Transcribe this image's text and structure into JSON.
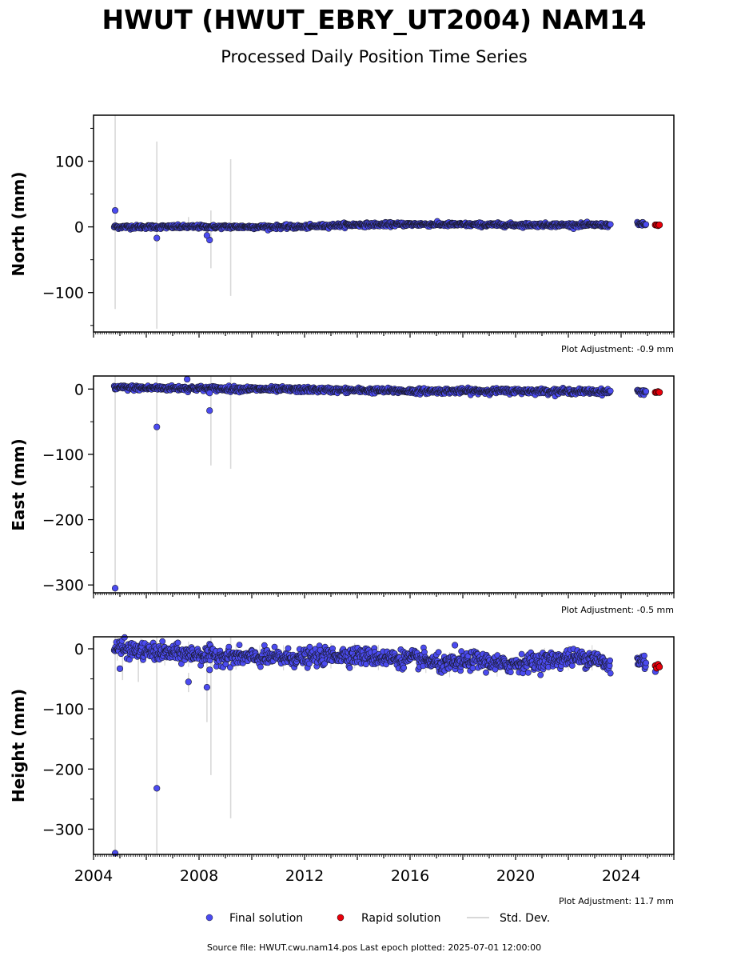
{
  "title": "HWUT (HWUT_EBRY_UT2004) NAM14",
  "subtitle": "Processed Daily Position Time Series",
  "source": "Source file: HWUT.cwu.nam14.pos  Last epoch plotted: 2025-07-01 12:00:00",
  "legend": {
    "final": "Final solution",
    "rapid": "Rapid solution",
    "std": "Std. Dev."
  },
  "colors": {
    "final": "#4b4bf0",
    "rapid": "#e8000b",
    "edge": "#1a1a2e",
    "std": "#d8d8d8"
  },
  "chart_data": [
    {
      "type": "scatter",
      "ylabel": "North (mm)",
      "adjustment": "Plot Adjustment: -0.9 mm",
      "xlim": [
        2004,
        2026
      ],
      "ylim": [
        -160,
        170
      ],
      "yticks": [
        -100,
        0,
        100
      ],
      "yticklabels": [
        "−100",
        "0",
        "100"
      ],
      "trend": [
        [
          2004.8,
          0
        ],
        [
          2008,
          0
        ],
        [
          2012,
          0
        ],
        [
          2013.5,
          3
        ],
        [
          2016,
          4
        ],
        [
          2020,
          3
        ],
        [
          2023.5,
          3
        ],
        [
          2024.8,
          4
        ],
        [
          2025.4,
          3
        ]
      ],
      "noise": 1.5,
      "gaps": [
        [
          2023.6,
          2024.6
        ],
        [
          2024.95,
          2025.3
        ]
      ],
      "outliers": [
        [
          2004.82,
          25
        ],
        [
          2006.4,
          -17
        ],
        [
          2008.4,
          -20
        ],
        [
          2008.3,
          -13
        ]
      ],
      "error_bars": [
        [
          2004.82,
          -125,
          170
        ],
        [
          2006.4,
          -155,
          130
        ],
        [
          2008.45,
          -63,
          25
        ],
        [
          2009.2,
          -105,
          103
        ],
        [
          2007.6,
          -5,
          15
        ]
      ],
      "rapid": [
        [
          2025.3,
          3
        ],
        [
          2025.35,
          3
        ],
        [
          2025.4,
          2
        ],
        [
          2025.45,
          3
        ]
      ]
    },
    {
      "type": "scatter",
      "ylabel": "East (mm)",
      "adjustment": "Plot Adjustment: -0.5 mm",
      "xlim": [
        2004,
        2026
      ],
      "ylim": [
        -312,
        20
      ],
      "yticks": [
        -300,
        -200,
        -100,
        0
      ],
      "yticklabels": [
        "−300",
        "−200",
        "−100",
        "0"
      ],
      "trend": [
        [
          2004.8,
          2
        ],
        [
          2008,
          1
        ],
        [
          2012,
          -1
        ],
        [
          2016,
          -3
        ],
        [
          2020,
          -3
        ],
        [
          2023.5,
          -4
        ],
        [
          2024.8,
          -4
        ],
        [
          2025.4,
          -5
        ]
      ],
      "noise": 2,
      "gaps": [
        [
          2023.6,
          2024.6
        ],
        [
          2024.95,
          2025.3
        ]
      ],
      "outliers": [
        [
          2004.82,
          -305
        ],
        [
          2006.4,
          -58
        ],
        [
          2008.4,
          -33
        ],
        [
          2007.55,
          15
        ],
        [
          2008.4,
          -6
        ]
      ],
      "error_bars": [
        [
          2004.82,
          -312,
          20
        ],
        [
          2006.4,
          -312,
          20
        ],
        [
          2008.45,
          -117,
          20
        ],
        [
          2009.2,
          -122,
          20
        ]
      ],
      "rapid": [
        [
          2025.3,
          -5
        ],
        [
          2025.35,
          -5
        ],
        [
          2025.4,
          -4
        ],
        [
          2025.45,
          -5
        ]
      ]
    },
    {
      "type": "scatter",
      "ylabel": "Height (mm)",
      "adjustment": "Plot Adjustment: 11.7 mm",
      "xlim": [
        2004,
        2026
      ],
      "ylim": [
        -342,
        20
      ],
      "yticks": [
        -300,
        -200,
        -100,
        0
      ],
      "yticklabels": [
        "−300",
        "−200",
        "−100",
        "0"
      ],
      "xticks": [
        2004,
        2008,
        2012,
        2016,
        2020,
        2024
      ],
      "trend": [
        [
          2004.8,
          2
        ],
        [
          2006,
          -5
        ],
        [
          2008,
          -10
        ],
        [
          2010,
          -15
        ],
        [
          2012,
          -15
        ],
        [
          2013.5,
          -10
        ],
        [
          2015,
          -15
        ],
        [
          2016.5,
          -18
        ],
        [
          2017.3,
          -28
        ],
        [
          2018.5,
          -18
        ],
        [
          2019.5,
          -27
        ],
        [
          2021,
          -20
        ],
        [
          2022,
          -15
        ],
        [
          2023,
          -15
        ],
        [
          2023.5,
          -28
        ],
        [
          2024.8,
          -20
        ],
        [
          2025.4,
          -28
        ]
      ],
      "noise": 7,
      "gaps": [
        [
          2023.6,
          2024.6
        ],
        [
          2024.95,
          2025.3
        ]
      ],
      "outliers": [
        [
          2004.82,
          -340
        ],
        [
          2006.4,
          -232
        ],
        [
          2008.3,
          -64
        ],
        [
          2007.6,
          -55
        ],
        [
          2008.4,
          -35
        ],
        [
          2005.0,
          -33
        ],
        [
          2017.7,
          6
        ],
        [
          2025.3,
          -38
        ]
      ],
      "error_bars": [
        [
          2004.82,
          -342,
          20
        ],
        [
          2006.4,
          -342,
          20
        ],
        [
          2008.45,
          -210,
          20
        ],
        [
          2009.2,
          -282,
          20
        ],
        [
          2008.3,
          -122,
          -10
        ],
        [
          2005.1,
          -52,
          0
        ],
        [
          2005.7,
          -55,
          0
        ],
        [
          2007.6,
          -72,
          -40
        ]
      ],
      "rapid": [
        [
          2025.3,
          -28
        ],
        [
          2025.35,
          -32
        ],
        [
          2025.4,
          -26
        ],
        [
          2025.45,
          -30
        ]
      ]
    }
  ]
}
